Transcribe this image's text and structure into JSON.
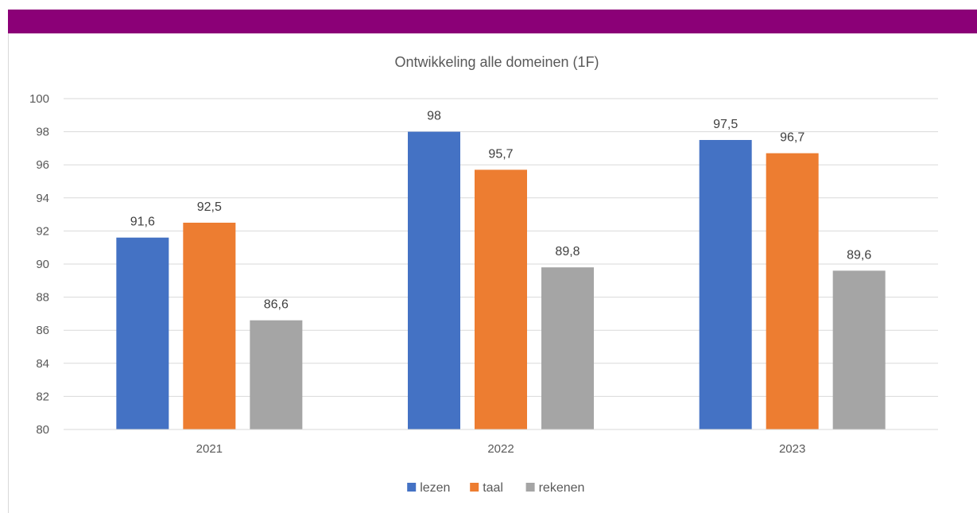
{
  "colors": {
    "header_band": "#8b0077",
    "grid": "#d9d9d9",
    "series": [
      "#4472c4",
      "#ed7d31",
      "#a5a5a5"
    ]
  },
  "chart_data": {
    "type": "bar",
    "title": "Ontwikkeling alle domeinen (1F)",
    "categories": [
      "2021",
      "2022",
      "2023"
    ],
    "series": [
      {
        "name": "lezen",
        "values": [
          91.6,
          98,
          97.5
        ],
        "labels": [
          "91,6",
          "98",
          "97,5"
        ]
      },
      {
        "name": "taal",
        "values": [
          92.5,
          95.7,
          96.7
        ],
        "labels": [
          "92,5",
          "95,7",
          "96,7"
        ]
      },
      {
        "name": "rekenen",
        "values": [
          86.6,
          89.8,
          89.6
        ],
        "labels": [
          "86,6",
          "89,8",
          "89,6"
        ]
      }
    ],
    "ylim": [
      80,
      100
    ],
    "yticks": [
      80,
      82,
      84,
      86,
      88,
      90,
      92,
      94,
      96,
      98,
      100
    ],
    "grid": true,
    "legend_position": "bottom"
  }
}
